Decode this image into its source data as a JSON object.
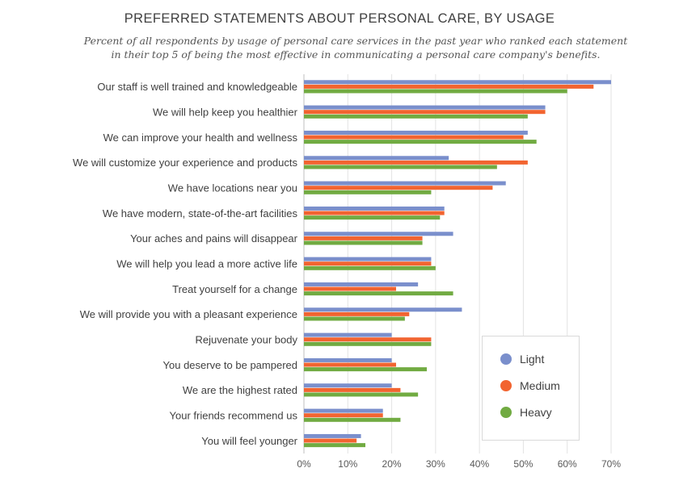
{
  "chart_data": {
    "type": "bar",
    "orientation": "horizontal",
    "title": "PREFERRED STATEMENTS ABOUT PERSONAL CARE, BY USAGE",
    "subtitle": "Percent of all respondents by usage of personal care services in the past year who ranked each statement in their top 5 of being the most effective in communicating a personal care company's benefits.",
    "categories": [
      "Our staff is well trained and knowledgeable",
      "We will help keep you healthier",
      "We can improve your health and wellness",
      "We will customize your experience and products",
      "We have locations near you",
      "We have modern, state-of-the-art facilities",
      "Your aches and pains will disappear",
      "We will help you lead a more active life",
      "Treat yourself for a change",
      "We will provide you with a pleasant experience",
      "Rejuvenate your body",
      "You deserve to be pampered",
      "We are the highest rated",
      "Your friends recommend us",
      "You will feel younger"
    ],
    "series": [
      {
        "name": "Light",
        "color": "#7a8fcc",
        "values": [
          70,
          55,
          51,
          33,
          46,
          32,
          34,
          29,
          26,
          36,
          20,
          20,
          20,
          18,
          13
        ]
      },
      {
        "name": "Medium",
        "color": "#f26430",
        "values": [
          66,
          55,
          50,
          51,
          43,
          32,
          27,
          29,
          21,
          24,
          29,
          21,
          22,
          18,
          12
        ]
      },
      {
        "name": "Heavy",
        "color": "#71ab42",
        "values": [
          60,
          51,
          53,
          44,
          29,
          31,
          27,
          30,
          34,
          23,
          29,
          28,
          26,
          22,
          14
        ]
      }
    ],
    "xlim": [
      0,
      70
    ],
    "xticks": [
      "0%",
      "10%",
      "20%",
      "30%",
      "40%",
      "50%",
      "60%",
      "70%"
    ],
    "grid": true,
    "legend_position": "bottom-right"
  }
}
